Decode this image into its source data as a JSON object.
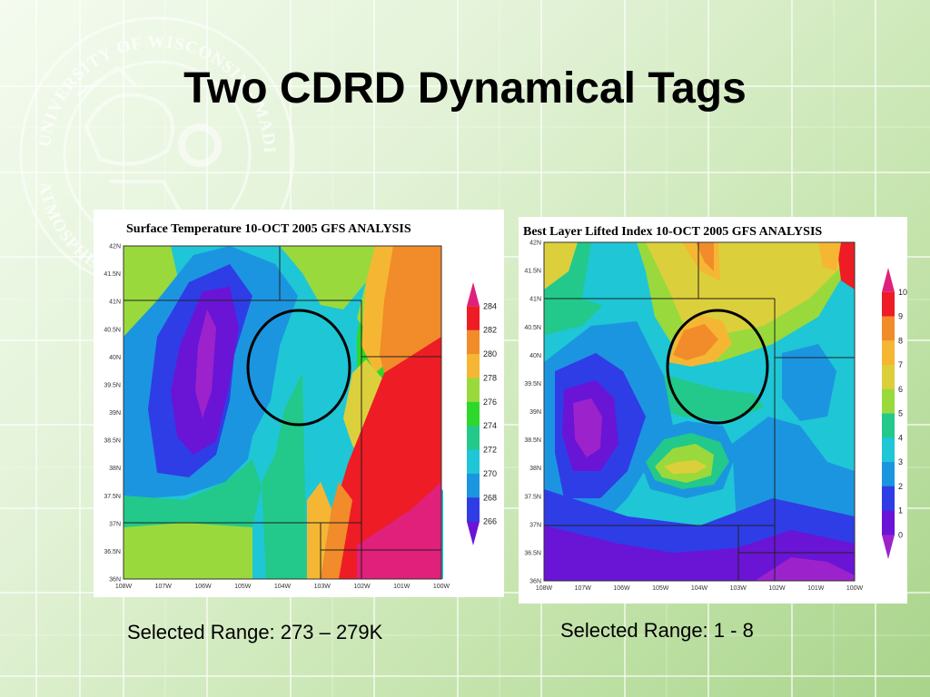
{
  "slide": {
    "title": "Two CDRD Dynamical Tags",
    "seal_text_top": "UNIVERSITY OF WISCONSIN - MADISON",
    "seal_text_bottom": "ATMOSPHERIC SCIENCES"
  },
  "maps": [
    {
      "title": "Surface Temperature 10-OCT 2005 GFS ANALYSIS",
      "lat_labels": [
        "42N",
        "41.5N",
        "41N",
        "40.5N",
        "40N",
        "39.5N",
        "39N",
        "38.5N",
        "38N",
        "37.5N",
        "37N",
        "36.5N",
        "36N"
      ],
      "lon_labels": [
        "108W",
        "107W",
        "106W",
        "105W",
        "104W",
        "103W",
        "102W",
        "101W",
        "100W"
      ],
      "colorbar_labels": [
        "284",
        "282",
        "280",
        "278",
        "276",
        "274",
        "272",
        "270",
        "268",
        "266"
      ],
      "caption": "Selected Range: 273 – 279K"
    },
    {
      "title": "Best Layer Lifted Index 10-OCT 2005 GFS ANALYSIS",
      "lat_labels": [
        "42N",
        "41.5N",
        "41N",
        "40.5N",
        "40N",
        "39.5N",
        "39N",
        "38.5N",
        "38N",
        "37.5N",
        "37N",
        "36.5N",
        "36N"
      ],
      "lon_labels": [
        "108W",
        "107W",
        "106W",
        "105W",
        "104W",
        "103W",
        "102W",
        "101W",
        "100W"
      ],
      "colorbar_labels": [
        "10",
        "9",
        "8",
        "7",
        "6",
        "5",
        "4",
        "3",
        "2",
        "1",
        "0"
      ],
      "caption": "Selected Range: 1 - 8"
    }
  ],
  "colors": {
    "magenta": "#e0207a",
    "red": "#ee1c24",
    "orange": "#f28b2a",
    "gold": "#f5b733",
    "yellow": "#dccf3c",
    "lime": "#9ad93c",
    "green": "#2ed82a",
    "teal": "#22c98a",
    "cyan": "#1fc6d6",
    "blue": "#1c95e0",
    "royal": "#2f3de6",
    "purple": "#6a14d6",
    "violet": "#9c22cc"
  }
}
